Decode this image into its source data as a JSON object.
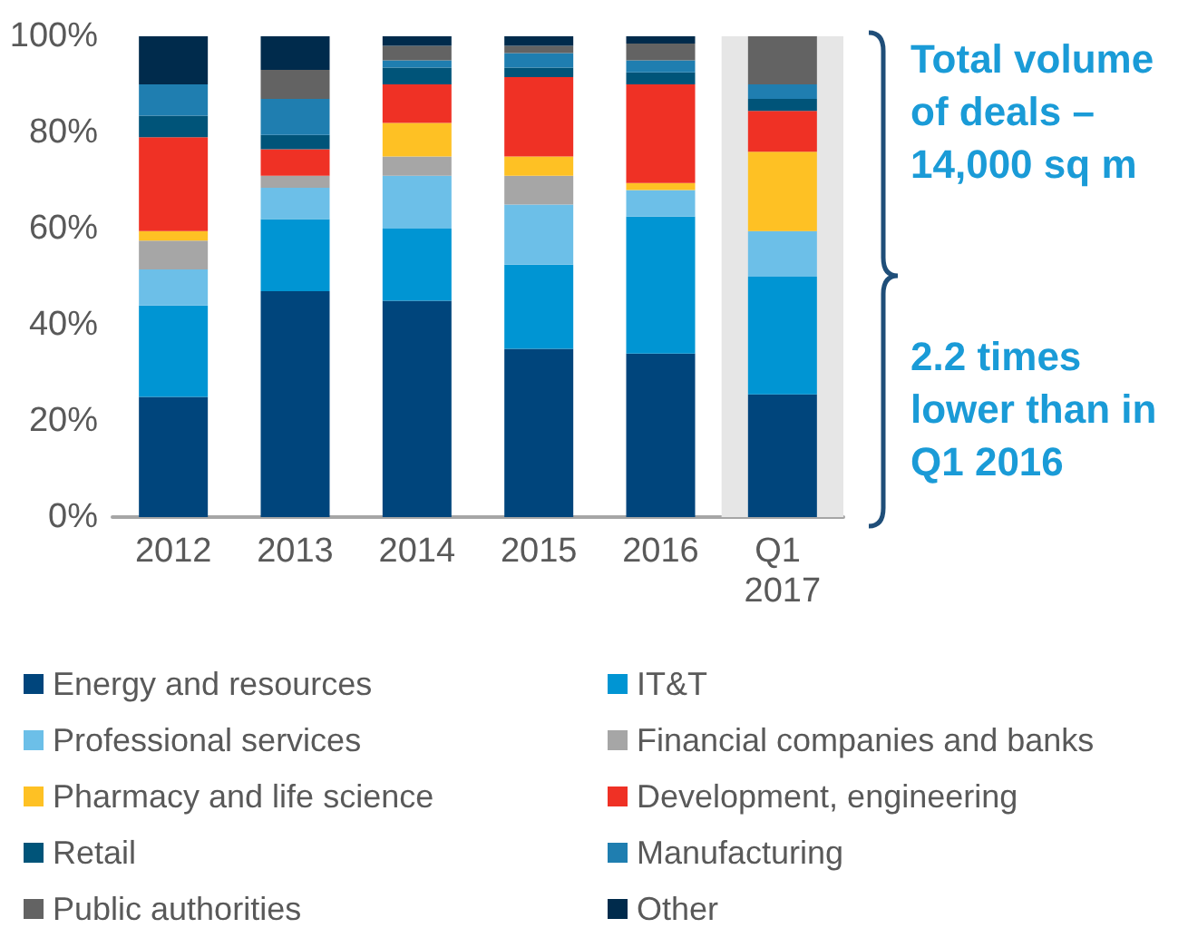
{
  "chart_data": {
    "type": "bar",
    "stacked": true,
    "categories": [
      "2012",
      "2013",
      "2014",
      "2015",
      "2016",
      "Q1 2017"
    ],
    "series": [
      {
        "name": "Energy and resources",
        "color": "#00457c",
        "values": [
          25,
          47,
          45,
          35,
          34,
          25.5
        ]
      },
      {
        "name": "IT&T",
        "color": "#0095d3",
        "values": [
          19,
          15,
          15,
          17.5,
          28.5,
          24.5
        ]
      },
      {
        "name": "Professional services",
        "color": "#6cbfe8",
        "values": [
          7.5,
          6.5,
          11,
          12.5,
          5.5,
          9.5
        ]
      },
      {
        "name": "Financial companies and banks",
        "color": "#a6a6a6",
        "values": [
          6,
          2.5,
          4,
          6,
          null,
          0
        ]
      },
      {
        "name": "Pharmacy and life science",
        "color": "#fec124",
        "values": [
          2,
          0,
          7,
          4,
          1.5,
          16.5
        ]
      },
      {
        "name": "Development, engineering",
        "color": "#ef3125",
        "values": [
          19.5,
          5.5,
          8,
          16.5,
          20.5,
          8.5
        ]
      },
      {
        "name": "Retail",
        "color": "#005479",
        "values": [
          4.5,
          3,
          3.5,
          2,
          2.5,
          2.5
        ]
      },
      {
        "name": "Manufacturing",
        "color": "#1f7eb0",
        "values": [
          6.5,
          7.5,
          1.5,
          3,
          2.5,
          3
        ]
      },
      {
        "name": "Public authorities",
        "color": "#636363",
        "values": [
          0,
          6,
          3,
          1.5,
          3.5,
          10
        ]
      },
      {
        "name": "Other",
        "color": "#002b4c",
        "values": [
          10,
          7,
          2,
          2,
          1.5,
          0
        ]
      }
    ],
    "ylim": [
      0,
      100
    ],
    "yticks": [
      {
        "value": 0,
        "label": "0%"
      },
      {
        "value": 20,
        "label": "20%"
      },
      {
        "value": 40,
        "label": "40%"
      },
      {
        "value": 60,
        "label": "60%"
      },
      {
        "value": 80,
        "label": "80%"
      },
      {
        "value": 100,
        "label": "100%"
      }
    ],
    "bands": [
      {
        "axis": "x",
        "from": "Q1 2017",
        "to": "Q1 2017",
        "color": "#e6e6e6"
      }
    ],
    "annotations": [
      "Total volume of deals – 14,000 sq m",
      "2.2 times lower than in Q1 2016"
    ],
    "grid": false,
    "legend": "bottom"
  }
}
